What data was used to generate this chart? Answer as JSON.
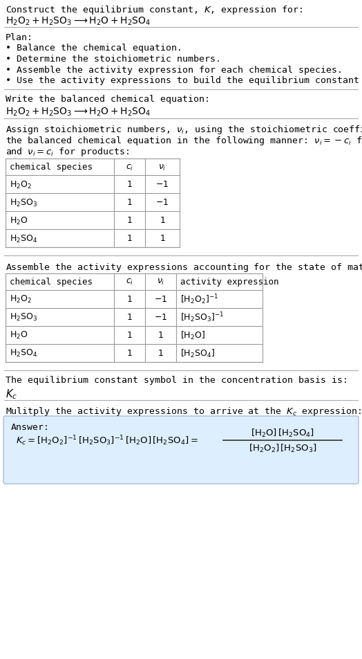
{
  "bg_color": "#ffffff",
  "text_color": "#000000",
  "line_color": "#aaaaaa",
  "answer_box_color": "#ddeeff",
  "answer_box_edge": "#aabbdd",
  "title_line1": "Construct the equilibrium constant, $K$, expression for:",
  "reaction": "$\\mathrm{H_2O_2} + \\mathrm{H_2SO_3} \\longrightarrow \\mathrm{H_2O} + \\mathrm{H_2SO_4}$",
  "plan_header": "Plan:",
  "plan_items": [
    "\\textbf{\\cdot} Balance the chemical equation.",
    "\\textbf{\\cdot} Determine the stoichiometric numbers.",
    "\\textbf{\\cdot} Assemble the activity expression for each chemical species.",
    "\\textbf{\\cdot} Use the activity expressions to build the equilibrium constant expression."
  ],
  "balanced_header": "Write the balanced chemical equation:",
  "stoich_intro_lines": [
    "Assign stoichiometric numbers, $\\nu_i$, using the stoichiometric coefficients, $c_i$, from",
    "the balanced chemical equation in the following manner: $\\nu_i = -c_i$ for reactants",
    "and $\\nu_i = c_i$ for products:"
  ],
  "table1_headers": [
    "chemical species",
    "$c_i$",
    "$\\nu_i$"
  ],
  "table1_rows": [
    [
      "$\\mathrm{H_2O_2}$",
      "1",
      "$-1$"
    ],
    [
      "$\\mathrm{H_2SO_3}$",
      "1",
      "$-1$"
    ],
    [
      "$\\mathrm{H_2O}$",
      "1",
      "$1$"
    ],
    [
      "$\\mathrm{H_2SO_4}$",
      "1",
      "$1$"
    ]
  ],
  "activity_intro": "Assemble the activity expressions accounting for the state of matter and $\\nu_i$:",
  "table2_headers": [
    "chemical species",
    "$c_i$",
    "$\\nu_i$",
    "activity expression"
  ],
  "table2_rows": [
    [
      "$\\mathrm{H_2O_2}$",
      "1",
      "$-1$",
      "$[\\mathrm{H_2O_2}]^{-1}$"
    ],
    [
      "$\\mathrm{H_2SO_3}$",
      "1",
      "$-1$",
      "$[\\mathrm{H_2SO_3}]^{-1}$"
    ],
    [
      "$\\mathrm{H_2O}$",
      "1",
      "$1$",
      "$[\\mathrm{H_2O}]$"
    ],
    [
      "$\\mathrm{H_2SO_4}$",
      "1",
      "$1$",
      "$[\\mathrm{H_2SO_4}]$"
    ]
  ],
  "kc_intro": "The equilibrium constant symbol in the concentration basis is:",
  "kc_symbol": "$K_c$",
  "multiply_intro": "Mulitply the activity expressions to arrive at the $K_c$ expression:",
  "answer_label": "Answer:",
  "eq_left": "$K_c = [\\mathrm{H_2O_2}]^{-1}\\,[\\mathrm{H_2SO_3}]^{-1}\\,[\\mathrm{H_2O}]\\,[\\mathrm{H_2SO_4}] = $",
  "frac_num": "$[\\mathrm{H_2O}]\\,[\\mathrm{H_2SO_4}]$",
  "frac_den": "$[\\mathrm{H_2O_2}]\\,[\\mathrm{H_2SO_3}]$"
}
